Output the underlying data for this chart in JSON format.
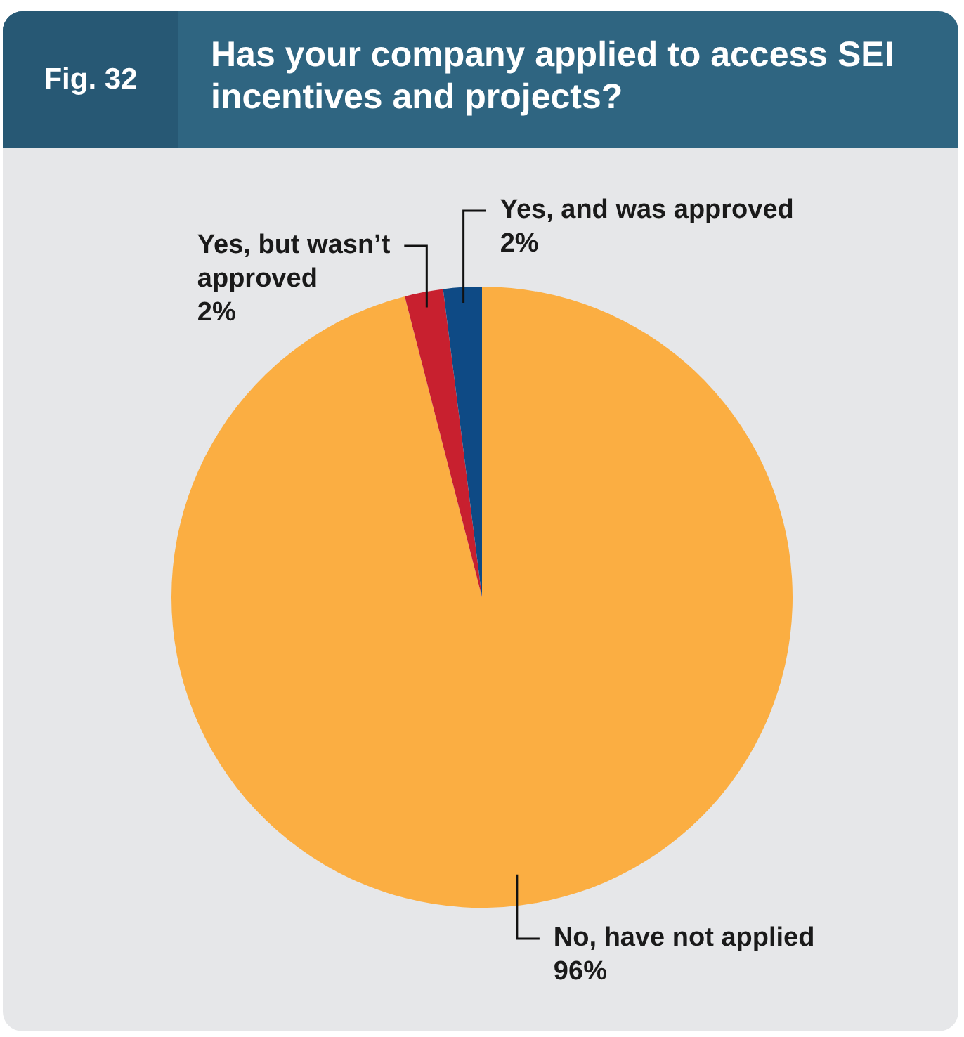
{
  "chart_data": {
    "type": "pie",
    "title": "Has your company applied to access SEI incentives and projects?",
    "annotations": [
      "Fig. 32"
    ],
    "categories": [
      "No, have not applied",
      "Yes, but wasn’t approved",
      "Yes, and was approved"
    ],
    "values": [
      96,
      2,
      2
    ],
    "colors": [
      "#fbae42",
      "#c8202f",
      "#0e4a85"
    ],
    "value_labels": [
      "96%",
      "2%",
      "2%"
    ],
    "legend": false
  }
}
